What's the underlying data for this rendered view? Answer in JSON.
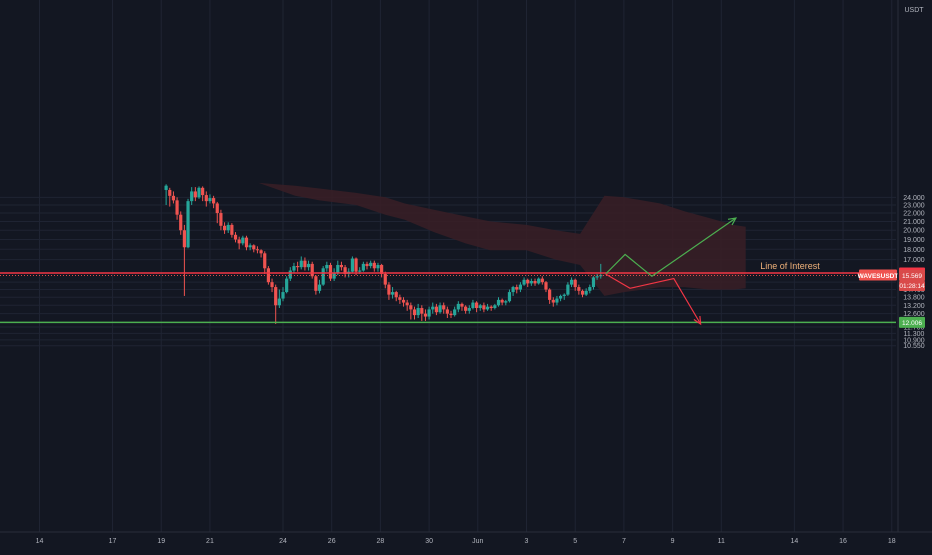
{
  "chart_data": {
    "type": "candlestick",
    "symbol": "WAVESUSDT",
    "currency": "USDT",
    "scale": "log",
    "grid": true,
    "y_ticks": [
      24.0,
      23.0,
      22.0,
      21.0,
      20.0,
      19.0,
      18.0,
      17.0,
      15.0,
      14.4,
      13.8,
      13.2,
      12.6,
      11.7,
      11.3,
      10.9,
      10.55
    ],
    "y_tick_labels": [
      "24.000",
      "23.000",
      "22.000",
      "21.000",
      "20.000",
      "19.000",
      "18.000",
      "17.000",
      "15.000",
      "14.400",
      "13.800",
      "13.200",
      "12.600",
      "11.700",
      "11.300",
      "10.900",
      "10.550"
    ],
    "x_ticks": [
      {
        "label": "14",
        "day": 14
      },
      {
        "label": "17",
        "day": 17
      },
      {
        "label": "19",
        "day": 19
      },
      {
        "label": "21",
        "day": 21
      },
      {
        "label": "24",
        "day": 24
      },
      {
        "label": "26",
        "day": 26
      },
      {
        "label": "28",
        "day": 28
      },
      {
        "label": "30",
        "day": 30
      },
      {
        "label": "Jun",
        "day": 32
      },
      {
        "label": "3",
        "day": 34
      },
      {
        "label": "5",
        "day": 36
      },
      {
        "label": "7",
        "day": 38
      },
      {
        "label": "9",
        "day": 40
      },
      {
        "label": "11",
        "day": 42
      },
      {
        "label": "14",
        "day": 45
      },
      {
        "label": "16",
        "day": 47
      },
      {
        "label": "18",
        "day": 49
      }
    ],
    "candles": [
      [
        19.2,
        25.0,
        25.6,
        23.0,
        25.8
      ],
      [
        19.35,
        25.0,
        24.2,
        22.8,
        25.3
      ],
      [
        19.5,
        24.2,
        23.6,
        23.2,
        24.8
      ],
      [
        19.65,
        23.6,
        21.8,
        21.2,
        24.0
      ],
      [
        19.8,
        21.8,
        20.0,
        19.5,
        22.2
      ],
      [
        19.95,
        20.0,
        18.2,
        13.9,
        20.6
      ],
      [
        20.1,
        18.2,
        23.5,
        18.1,
        23.8
      ],
      [
        20.25,
        23.5,
        24.8,
        23.0,
        25.4
      ],
      [
        20.4,
        24.8,
        24.0,
        23.5,
        25.4
      ],
      [
        20.55,
        24.0,
        25.3,
        23.8,
        25.5
      ],
      [
        20.7,
        25.3,
        24.3,
        23.5,
        25.5
      ],
      [
        20.85,
        24.3,
        23.5,
        22.8,
        24.8
      ],
      [
        21.0,
        23.5,
        23.9,
        23.2,
        24.4
      ],
      [
        21.15,
        23.9,
        23.2,
        22.6,
        24.2
      ],
      [
        21.3,
        23.2,
        22.0,
        20.8,
        23.4
      ],
      [
        21.45,
        22.0,
        20.5,
        20.0,
        22.4
      ],
      [
        21.6,
        20.5,
        20.0,
        19.6,
        20.9
      ],
      [
        21.75,
        20.0,
        20.6,
        19.7,
        20.9
      ],
      [
        21.9,
        20.6,
        19.5,
        19.2,
        20.8
      ],
      [
        22.05,
        19.5,
        19.0,
        18.7,
        19.8
      ],
      [
        22.2,
        19.0,
        18.6,
        18.0,
        19.3
      ],
      [
        22.35,
        18.6,
        19.2,
        18.4,
        19.4
      ],
      [
        22.5,
        19.2,
        18.2,
        17.9,
        19.4
      ],
      [
        22.65,
        18.2,
        18.4,
        17.9,
        18.6
      ],
      [
        22.8,
        18.4,
        18.0,
        17.7,
        18.5
      ],
      [
        22.95,
        18.0,
        17.9,
        17.6,
        18.3
      ],
      [
        23.1,
        17.9,
        17.6,
        17.2,
        18.0
      ],
      [
        23.25,
        17.6,
        16.2,
        15.7,
        17.8
      ],
      [
        23.4,
        16.2,
        15.0,
        14.8,
        16.4
      ],
      [
        23.55,
        15.0,
        14.6,
        14.2,
        15.3
      ],
      [
        23.7,
        14.6,
        13.2,
        11.9,
        14.8
      ],
      [
        23.85,
        13.2,
        13.7,
        13.0,
        14.4
      ],
      [
        24.0,
        13.7,
        14.2,
        13.5,
        14.6
      ],
      [
        24.15,
        14.2,
        15.3,
        14.1,
        15.5
      ],
      [
        24.3,
        15.3,
        16.0,
        15.1,
        16.3
      ],
      [
        24.45,
        16.0,
        16.4,
        15.8,
        16.7
      ],
      [
        24.6,
        16.4,
        16.3,
        15.9,
        16.8
      ],
      [
        24.75,
        16.3,
        16.9,
        16.1,
        17.3
      ],
      [
        24.9,
        16.9,
        16.3,
        16.0,
        17.2
      ],
      [
        25.05,
        16.3,
        16.6,
        16.0,
        16.9
      ],
      [
        25.2,
        16.6,
        15.5,
        15.3,
        16.8
      ],
      [
        25.35,
        15.5,
        14.3,
        14.0,
        15.6
      ],
      [
        25.5,
        14.3,
        14.8,
        14.1,
        15.2
      ],
      [
        25.65,
        14.8,
        16.2,
        14.7,
        16.4
      ],
      [
        25.8,
        16.2,
        16.5,
        15.9,
        16.8
      ],
      [
        25.95,
        16.5,
        15.3,
        15.1,
        16.7
      ],
      [
        26.1,
        15.3,
        15.8,
        15.1,
        16.2
      ],
      [
        26.25,
        15.8,
        16.5,
        15.6,
        16.9
      ],
      [
        26.4,
        16.5,
        16.3,
        16.0,
        16.8
      ],
      [
        26.55,
        16.3,
        15.7,
        15.4,
        16.5
      ],
      [
        26.7,
        15.7,
        15.9,
        15.4,
        16.2
      ],
      [
        26.85,
        15.9,
        17.1,
        15.8,
        17.3
      ],
      [
        27.0,
        17.1,
        15.9,
        15.6,
        17.2
      ],
      [
        27.15,
        15.9,
        16.0,
        15.7,
        16.3
      ],
      [
        27.3,
        16.0,
        16.6,
        15.9,
        16.8
      ],
      [
        27.45,
        16.6,
        16.4,
        16.1,
        16.8
      ],
      [
        27.6,
        16.4,
        16.7,
        16.2,
        16.9
      ],
      [
        27.75,
        16.7,
        16.2,
        15.9,
        16.9
      ],
      [
        27.9,
        16.2,
        16.5,
        15.9,
        16.7
      ],
      [
        28.05,
        16.5,
        15.7,
        15.4,
        16.6
      ],
      [
        28.2,
        15.7,
        14.8,
        14.5,
        15.9
      ],
      [
        28.35,
        14.8,
        14.0,
        13.6,
        15.0
      ],
      [
        28.5,
        14.0,
        14.2,
        13.7,
        14.6
      ],
      [
        28.65,
        14.2,
        13.8,
        13.5,
        14.3
      ],
      [
        28.8,
        13.8,
        13.6,
        13.3,
        14.0
      ],
      [
        28.95,
        13.6,
        13.4,
        13.1,
        13.8
      ],
      [
        29.1,
        13.4,
        13.2,
        12.8,
        13.6
      ],
      [
        29.25,
        13.2,
        12.9,
        12.2,
        13.4
      ],
      [
        29.4,
        12.9,
        12.5,
        12.2,
        13.1
      ],
      [
        29.55,
        12.5,
        13.0,
        12.3,
        13.3
      ],
      [
        29.7,
        13.0,
        12.6,
        12.1,
        13.2
      ],
      [
        29.85,
        12.6,
        12.4,
        12.1,
        12.9
      ],
      [
        30.0,
        12.4,
        12.9,
        12.2,
        13.1
      ],
      [
        30.15,
        12.9,
        13.1,
        12.6,
        13.4
      ],
      [
        30.3,
        13.1,
        12.7,
        12.5,
        13.3
      ],
      [
        30.45,
        12.7,
        13.2,
        12.6,
        13.4
      ],
      [
        30.6,
        13.2,
        12.9,
        12.6,
        13.4
      ],
      [
        30.75,
        12.9,
        12.6,
        12.3,
        13.1
      ],
      [
        30.9,
        12.6,
        12.5,
        12.3,
        12.8
      ],
      [
        31.05,
        12.5,
        12.9,
        12.4,
        13.1
      ],
      [
        31.2,
        12.9,
        13.3,
        12.7,
        13.5
      ],
      [
        31.35,
        13.3,
        13.1,
        12.8,
        13.4
      ],
      [
        31.5,
        13.1,
        12.8,
        12.6,
        13.2
      ],
      [
        31.65,
        12.8,
        13.0,
        12.6,
        13.2
      ],
      [
        31.8,
        13.0,
        13.4,
        12.9,
        13.6
      ],
      [
        31.95,
        13.4,
        13.0,
        12.7,
        13.5
      ],
      [
        32.1,
        13.0,
        13.2,
        12.8,
        13.3
      ],
      [
        32.25,
        13.2,
        12.9,
        12.7,
        13.4
      ],
      [
        32.4,
        12.9,
        13.1,
        12.8,
        13.3
      ],
      [
        32.55,
        13.1,
        13.0,
        12.8,
        13.2
      ],
      [
        32.7,
        13.0,
        13.2,
        12.9,
        13.3
      ],
      [
        32.85,
        13.2,
        13.6,
        13.1,
        13.8
      ],
      [
        33.0,
        13.6,
        13.4,
        13.2,
        13.7
      ],
      [
        33.15,
        13.4,
        13.5,
        13.2,
        13.6
      ],
      [
        33.3,
        13.5,
        14.2,
        13.4,
        14.4
      ],
      [
        33.45,
        14.2,
        14.6,
        13.9,
        14.7
      ],
      [
        33.6,
        14.6,
        14.4,
        14.1,
        14.8
      ],
      [
        33.75,
        14.4,
        14.8,
        14.2,
        15.0
      ],
      [
        33.9,
        14.8,
        15.2,
        14.7,
        15.4
      ],
      [
        34.05,
        15.2,
        14.9,
        14.6,
        15.3
      ],
      [
        34.2,
        14.9,
        15.1,
        14.7,
        15.3
      ],
      [
        34.35,
        15.1,
        14.9,
        14.7,
        15.3
      ],
      [
        34.5,
        14.9,
        15.3,
        14.8,
        15.4
      ],
      [
        34.65,
        15.3,
        15.0,
        14.8,
        15.5
      ],
      [
        34.8,
        15.0,
        14.4,
        14.2,
        15.1
      ],
      [
        34.95,
        14.4,
        13.6,
        13.3,
        14.5
      ],
      [
        35.1,
        13.6,
        13.4,
        13.1,
        13.8
      ],
      [
        35.25,
        13.4,
        13.7,
        13.2,
        13.9
      ],
      [
        35.4,
        13.7,
        13.9,
        13.5,
        14.0
      ],
      [
        35.55,
        13.9,
        14.0,
        13.6,
        14.1
      ],
      [
        35.7,
        14.0,
        14.8,
        13.9,
        15.0
      ],
      [
        35.85,
        14.8,
        15.2,
        14.6,
        15.4
      ],
      [
        36.0,
        15.2,
        14.6,
        14.3,
        15.3
      ],
      [
        36.15,
        14.6,
        14.3,
        14.0,
        14.8
      ],
      [
        36.3,
        14.3,
        14.0,
        13.8,
        14.4
      ],
      [
        36.45,
        14.0,
        14.3,
        13.9,
        14.5
      ],
      [
        36.6,
        14.3,
        14.6,
        14.1,
        14.8
      ],
      [
        36.75,
        14.6,
        15.4,
        14.4,
        15.5
      ],
      [
        36.9,
        15.4,
        15.5,
        15.2,
        15.7
      ],
      [
        37.05,
        15.5,
        15.6,
        15.3,
        16.6
      ]
    ],
    "ichimoku_cloud": {
      "points": [
        [
          23.0,
          26.0,
          26.0
        ],
        [
          24.5,
          25.6,
          24.2
        ],
        [
          25.5,
          25.2,
          23.6
        ],
        [
          27.0,
          24.6,
          23.0
        ],
        [
          28.2,
          24.0,
          21.8
        ],
        [
          29.0,
          23.2,
          21.2
        ],
        [
          30.2,
          22.4,
          19.8
        ],
        [
          31.5,
          21.6,
          18.6
        ],
        [
          32.5,
          21.0,
          17.9
        ],
        [
          34.0,
          20.6,
          17.9
        ],
        [
          35.2,
          20.0,
          17.0
        ],
        [
          36.2,
          19.6,
          16.5
        ],
        [
          37.2,
          24.2,
          13.9
        ],
        [
          38.0,
          24.0,
          14.2
        ],
        [
          39.5,
          23.2,
          14.6
        ],
        [
          40.5,
          22.2,
          14.6
        ],
        [
          41.5,
          21.4,
          14.4
        ],
        [
          42.5,
          20.6,
          14.4
        ],
        [
          43.0,
          20.4,
          14.5
        ]
      ],
      "color": "#3a1f26"
    },
    "levels": [
      {
        "name": "Line of Interest",
        "price": 15.783,
        "label": "15.783",
        "color": "#f23645"
      },
      {
        "name": "current-price",
        "price": 15.569,
        "label": "15.569",
        "color": "#ef5350"
      },
      {
        "name": "support",
        "price": 12.006,
        "label": "12.006",
        "color": "#4caf50"
      }
    ],
    "annotation_label": "Line of Interest",
    "symbol_badge": "WAVESUSDT",
    "countdown": "01:28:14",
    "projections": {
      "bull": {
        "color": "#4caf50",
        "points": [
          [
            37.25,
            15.7
          ],
          [
            38.05,
            17.5
          ],
          [
            39.15,
            15.5
          ],
          [
            42.6,
            21.4
          ]
        ]
      },
      "bear": {
        "color": "#f23645",
        "points": [
          [
            37.25,
            15.7
          ],
          [
            38.25,
            14.5
          ],
          [
            40.05,
            15.3
          ],
          [
            41.15,
            11.9
          ]
        ]
      }
    },
    "colors": {
      "up": "#26a69a",
      "down": "#ef5350",
      "grid": "#1f2433",
      "text": "#b2b5be",
      "bg": "#131722"
    }
  }
}
